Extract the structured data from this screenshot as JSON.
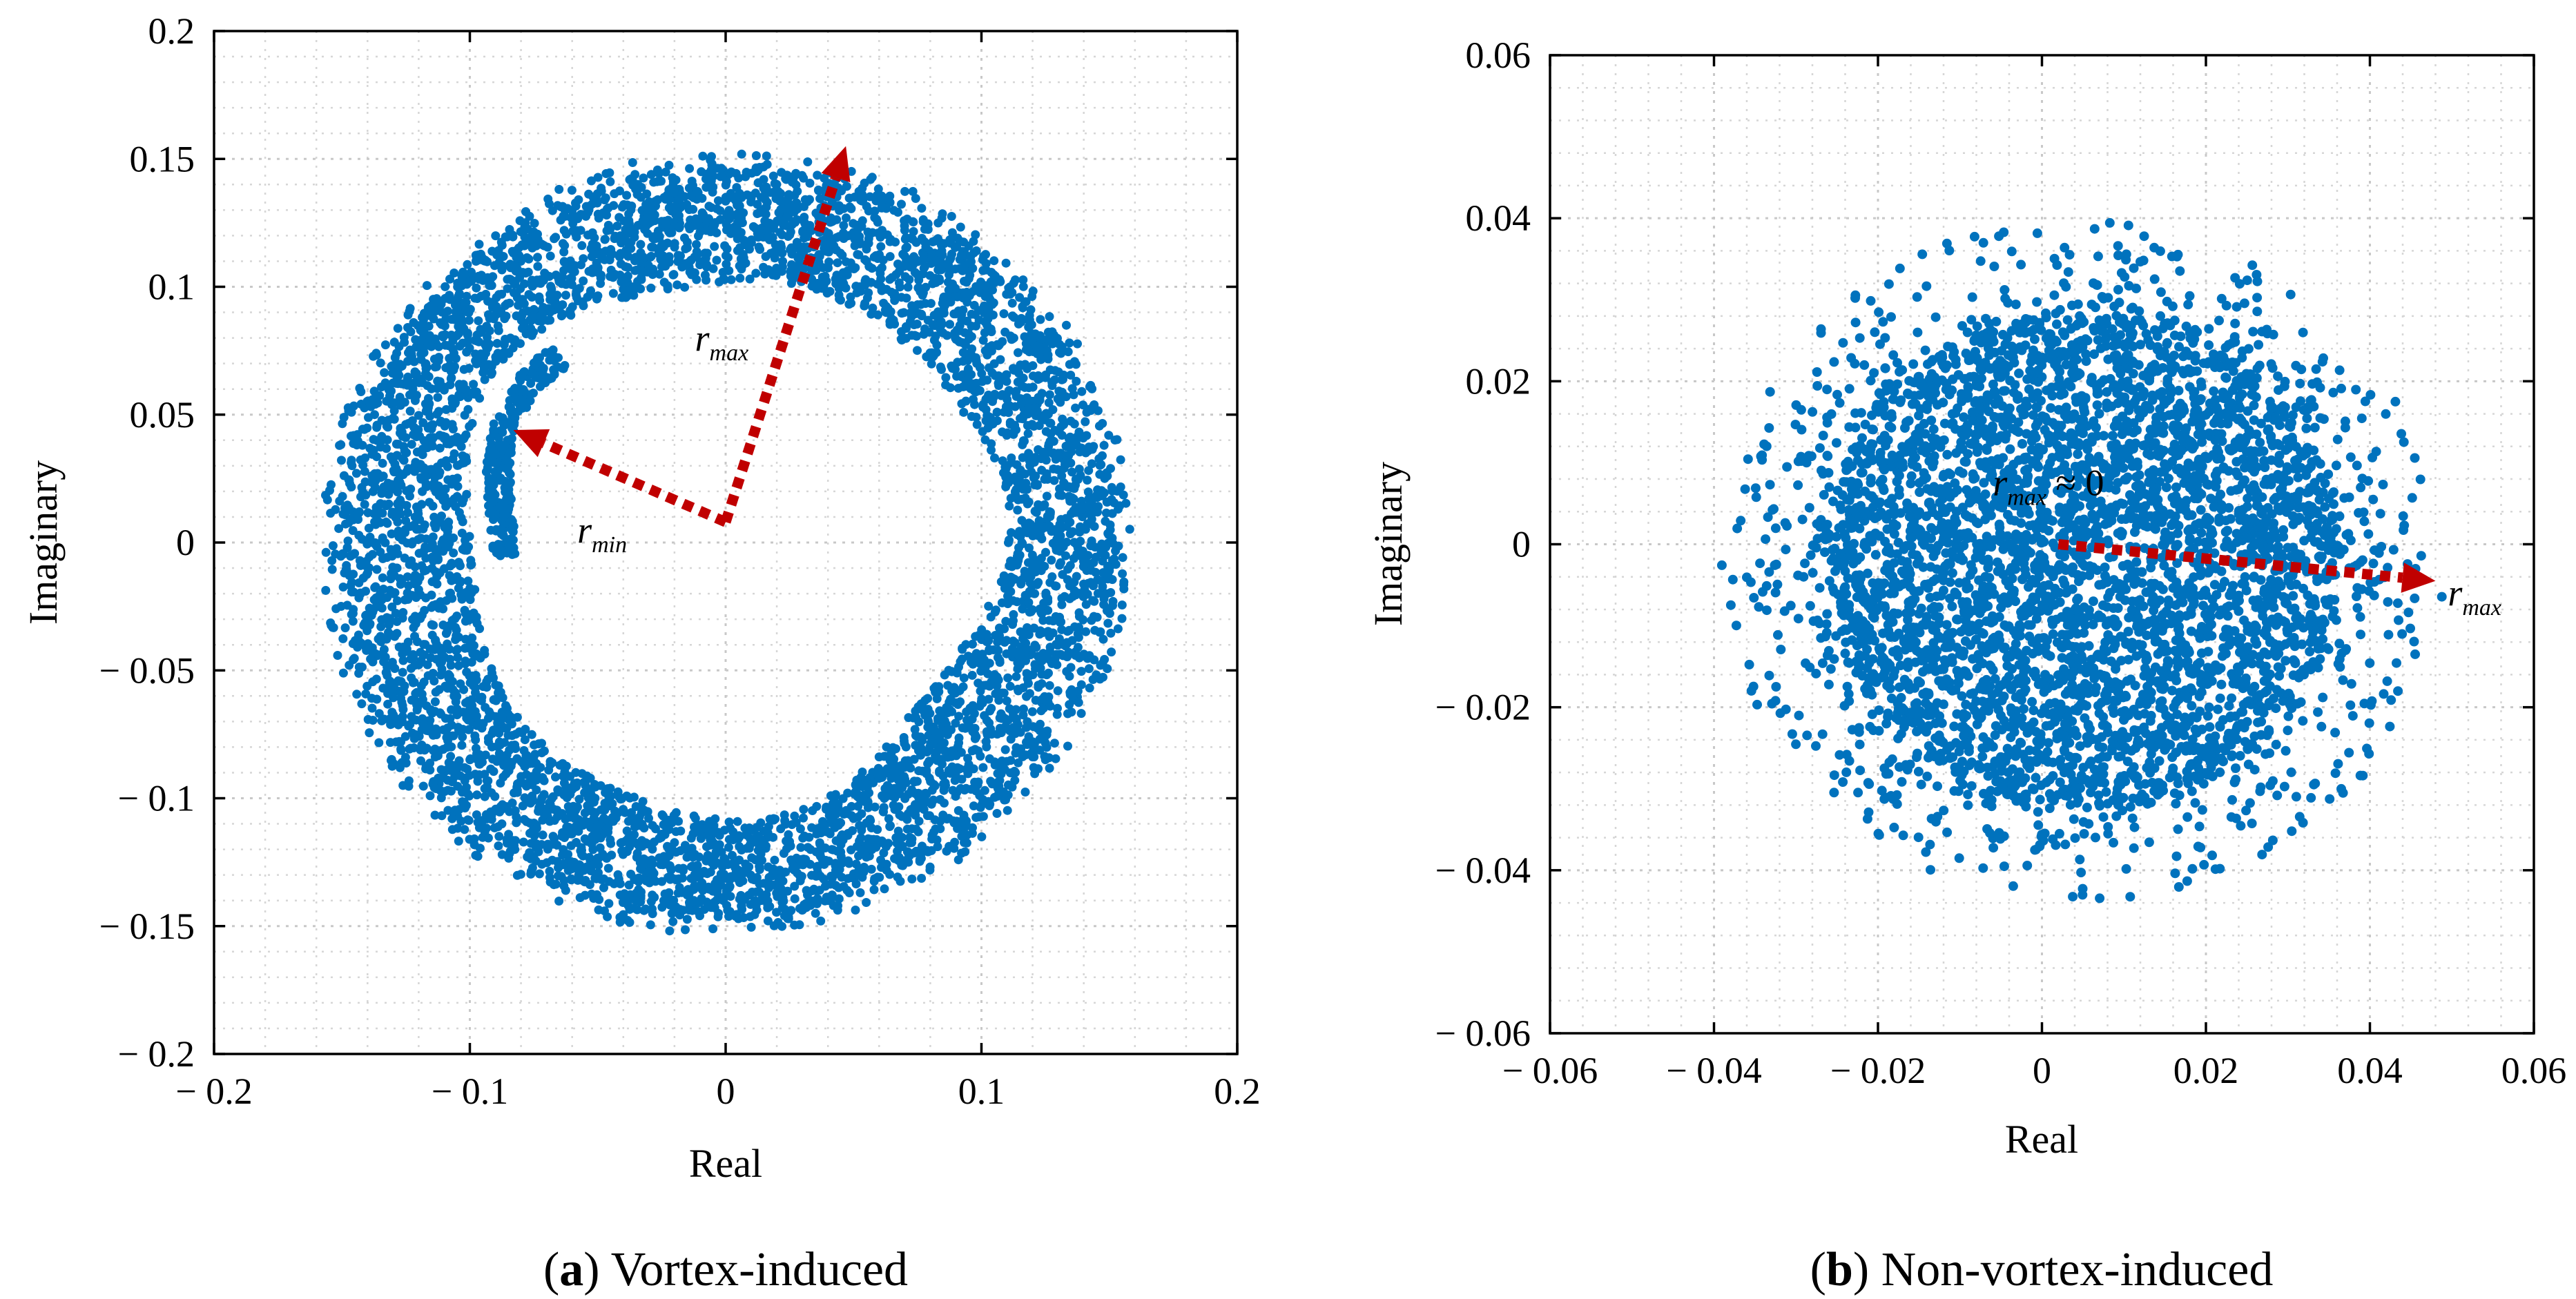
{
  "colors": {
    "points": "#0072BD",
    "arrows": "#C00000",
    "axes": "#000000",
    "grid": "#c8c8c8"
  },
  "chart_data": [
    {
      "id": "a",
      "type": "scatter",
      "xlabel": "Real",
      "ylabel": "Imaginary",
      "xlim": [
        -0.2,
        0.2
      ],
      "ylim": [
        -0.2,
        0.2
      ],
      "xticks": [
        -0.2,
        -0.1,
        0,
        0.1,
        0.2
      ],
      "yticks": [
        -0.2,
        -0.15,
        -0.1,
        -0.05,
        0,
        0.05,
        0.1,
        0.15,
        0.2
      ],
      "xtick_labels": [
        "− 0.2",
        "− 0.1",
        "0",
        "0.1",
        "0.2"
      ],
      "ytick_labels": [
        "− 0.2",
        "− 0.15",
        "− 0.1",
        "− 0.05",
        "0",
        "0.05",
        "0.1",
        "0.15",
        "0.2"
      ],
      "grid": true,
      "minor_grid": true,
      "distribution": {
        "shape": "annulus",
        "center": [
          0.0,
          0.0
        ],
        "r_inner": 0.105,
        "r_outer": 0.15
      },
      "annotations": [
        {
          "label": "r",
          "sub": "max",
          "from": [
            0.0,
            0.008
          ],
          "to": [
            0.047,
            0.155
          ],
          "text_pos": [
            -0.012,
            0.075
          ]
        },
        {
          "label": "r",
          "sub": "min",
          "from": [
            0.0,
            0.008
          ],
          "to": [
            -0.083,
            0.044
          ],
          "text_pos": [
            -0.058,
            0.0
          ]
        }
      ],
      "caption_label": "a",
      "caption_text": "Vortex-induced"
    },
    {
      "id": "b",
      "type": "scatter",
      "xlabel": "Real",
      "ylabel": "Imaginary",
      "xlim": [
        -0.06,
        0.06
      ],
      "ylim": [
        -0.06,
        0.06
      ],
      "xticks": [
        -0.06,
        -0.04,
        -0.02,
        0,
        0.02,
        0.04,
        0.06
      ],
      "yticks": [
        -0.06,
        -0.04,
        -0.02,
        0,
        0.02,
        0.04,
        0.06
      ],
      "xtick_labels": [
        "− 0.06",
        "− 0.04",
        "− 0.02",
        "0",
        "0.02",
        "0.04",
        "0.06"
      ],
      "ytick_labels": [
        "− 0.06",
        "− 0.04",
        "− 0.02",
        "0",
        "0.02",
        "0.04",
        "0.06"
      ],
      "grid": true,
      "minor_grid": true,
      "distribution": {
        "shape": "disk",
        "center": [
          0.005,
          -0.002
        ],
        "r_core": 0.03,
        "r_outer": 0.042
      },
      "annotations": [
        {
          "label": "r",
          "sub": "max",
          "suffix": " ≈ 0",
          "text_pos": [
            -0.006,
            0.006
          ]
        },
        {
          "label": "r",
          "sub": "max",
          "from": [
            0.002,
            0.0
          ],
          "to": [
            0.048,
            -0.0045
          ],
          "text_pos": [
            0.0495,
            -0.0075
          ]
        }
      ],
      "caption_label": "b",
      "caption_text": "Non-vortex-induced"
    }
  ]
}
